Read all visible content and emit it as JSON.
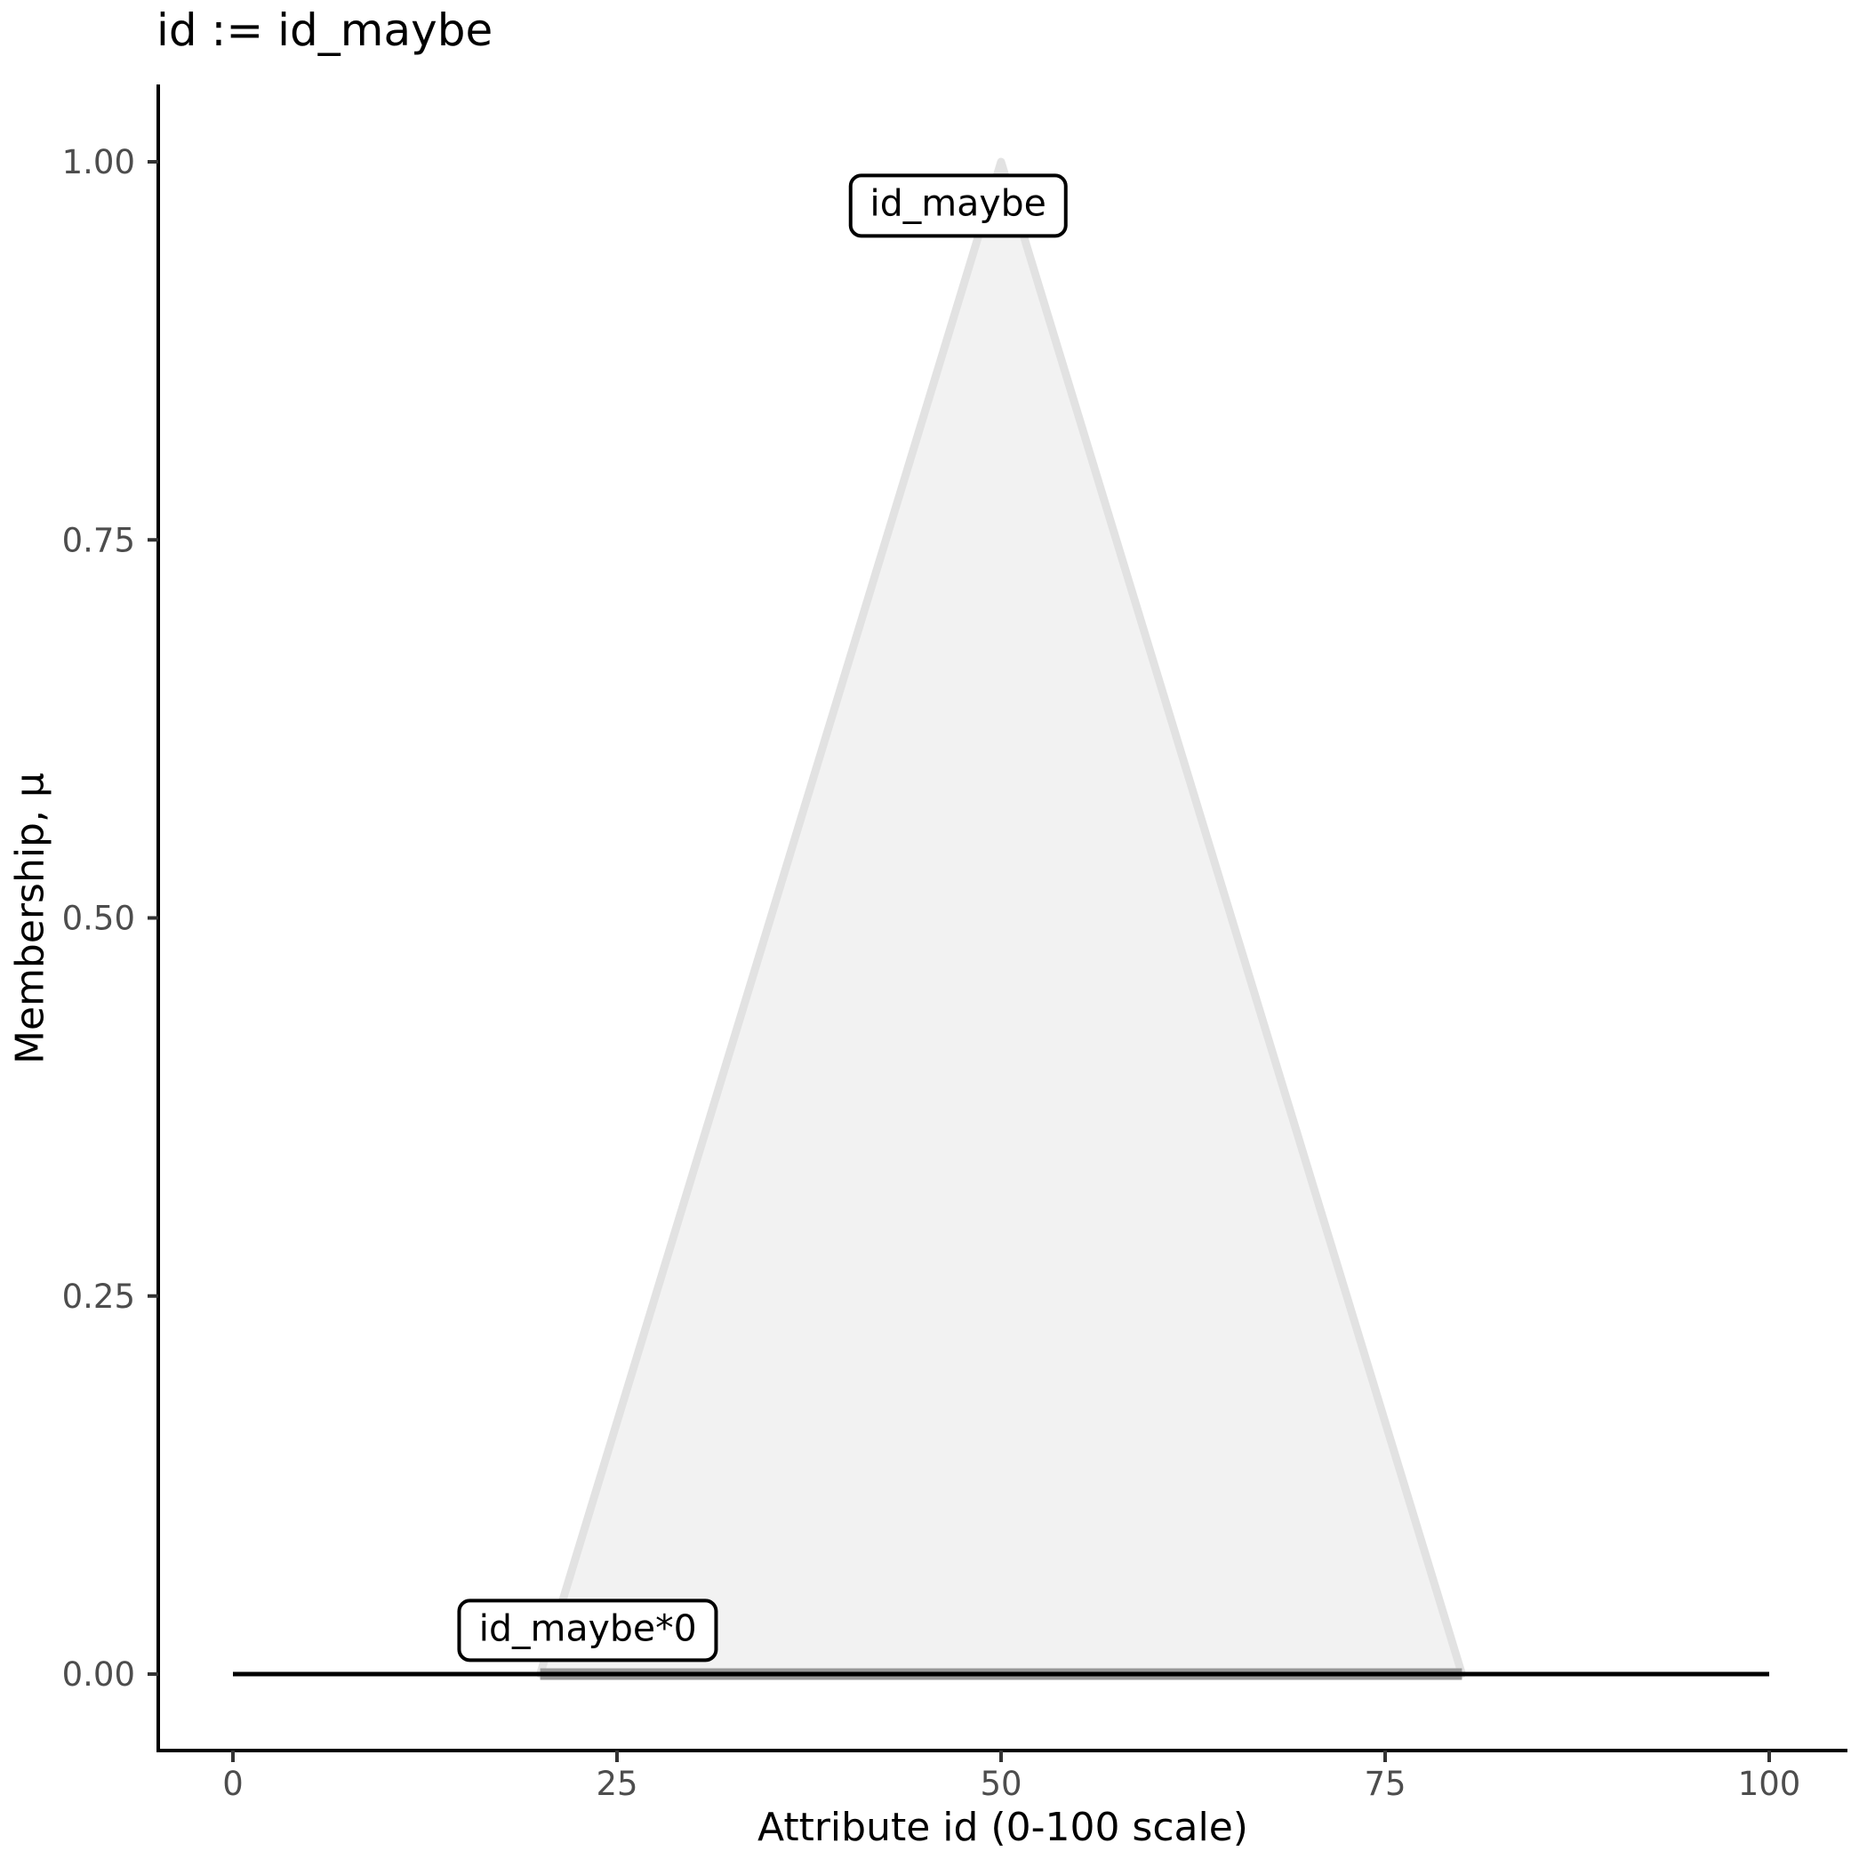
{
  "chart_data": {
    "type": "area",
    "title": "id := id_maybe",
    "xlabel": "Attribute id (0-100 scale)",
    "ylabel": "Membership, μ",
    "xlim": [
      0,
      100
    ],
    "ylim": [
      0,
      1
    ],
    "grid": false,
    "legend": false,
    "x_ticks": {
      "values": [
        0,
        25,
        50,
        75,
        100
      ],
      "labels": [
        "0",
        "25",
        "50",
        "75",
        "100"
      ]
    },
    "y_ticks": {
      "values": [
        0,
        0.25,
        0.5,
        0.75,
        1
      ],
      "labels": [
        "0.00",
        "0.25",
        "0.50",
        "0.75",
        "1.00"
      ]
    },
    "series": [
      {
        "name": "id_maybe",
        "kind": "area",
        "x": [
          20,
          50,
          80
        ],
        "y": [
          0,
          1,
          0
        ],
        "fill": "#F2F2F2",
        "stroke": "#E2E2E2",
        "stroke_width": 9
      },
      {
        "name": "id_maybe*0",
        "kind": "line",
        "x": [
          20,
          80
        ],
        "y": [
          0,
          0
        ],
        "stroke": "#999999",
        "stroke_width": 13
      },
      {
        "name": "id",
        "kind": "line",
        "x": [
          0,
          100
        ],
        "y": [
          0,
          0
        ],
        "stroke": "#000000",
        "stroke_width": 5
      }
    ],
    "annotations": [
      {
        "text": "id_maybe",
        "x": 47.2,
        "y": 0.971
      },
      {
        "text": "id_maybe*0",
        "x": 23.1,
        "y": 0.029
      }
    ],
    "colors": {
      "background": "#FFFFFF",
      "axis": "#000000",
      "tick_mark": "#333333",
      "tick_label": "#4D4D4D",
      "label_box_border": "#000000",
      "label_box_fill": "#FFFFFF"
    }
  }
}
